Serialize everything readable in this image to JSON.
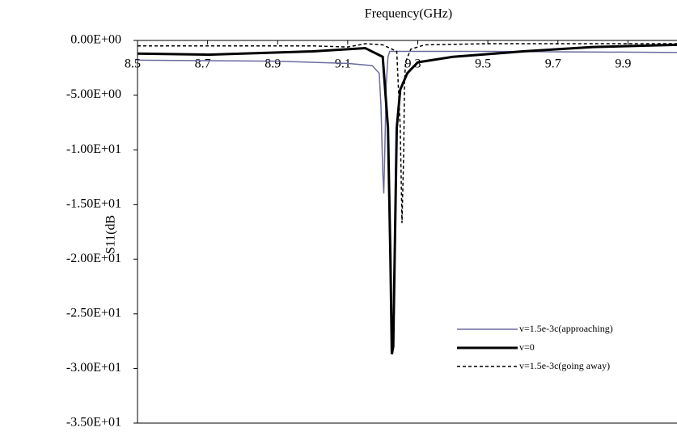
{
  "chart_data": {
    "type": "line",
    "x_label": "Frequency(GHz)",
    "y_label": "S11(dB",
    "xlim": [
      8.5,
      10.04
    ],
    "xticks": [
      8.5,
      8.7,
      8.9,
      9.1,
      9.3,
      9.5,
      9.7,
      9.9
    ],
    "ylim": [
      -35,
      0
    ],
    "yticks": [
      {
        "value": 0,
        "label": "0.00E+00"
      },
      {
        "value": -5,
        "label": "-5.00E+00"
      },
      {
        "value": -10,
        "label": "-1.00E+01"
      },
      {
        "value": -15,
        "label": "-1.50E+01"
      },
      {
        "value": -20,
        "label": "-2.00E+01"
      },
      {
        "value": -25,
        "label": "-2.50E+01"
      },
      {
        "value": -30,
        "label": "-3.00E+01"
      },
      {
        "value": -35,
        "label": "-3.50E+01"
      }
    ],
    "series": [
      {
        "name": "v=1.5e-3c(approaching)",
        "color": "#6b6b9e",
        "width": 1.5,
        "dash": "none",
        "x": [
          8.5,
          8.9,
          9.1,
          9.17,
          9.19,
          9.195,
          9.2,
          9.203,
          9.206,
          9.21,
          9.215,
          9.22,
          9.25,
          9.3,
          9.5,
          10.04
        ],
        "values": [
          -1.8,
          -1.9,
          -2.1,
          -2.3,
          -3,
          -6,
          -12,
          -14,
          -10,
          -4,
          -1.5,
          -1,
          -1,
          -1,
          -1,
          -1.1
        ]
      },
      {
        "name": "v=0",
        "color": "#000000",
        "width": 3,
        "dash": "none",
        "x": [
          8.5,
          8.7,
          9.0,
          9.15,
          9.2,
          9.215,
          9.222,
          9.226,
          9.23,
          9.234,
          9.24,
          9.25,
          9.27,
          9.3,
          9.4,
          9.6,
          9.8,
          10.04
        ],
        "values": [
          -1.2,
          -1.3,
          -1.0,
          -0.7,
          -1.5,
          -8,
          -20,
          -28.7,
          -28,
          -20,
          -8,
          -4.5,
          -3,
          -2,
          -1.5,
          -1,
          -0.6,
          -0.4
        ]
      },
      {
        "name": "v=1.5e-3c(going away)",
        "color": "#000000",
        "width": 1.5,
        "dash": "4 3",
        "x": [
          8.5,
          9.0,
          9.1,
          9.15,
          9.2,
          9.24,
          9.25,
          9.255,
          9.26,
          9.262,
          9.265,
          9.28,
          9.32,
          9.5,
          10.04
        ],
        "values": [
          -0.5,
          -0.5,
          -0.6,
          -0.3,
          -0.4,
          -1,
          -8,
          -16.7,
          -10,
          -4,
          -2,
          -0.8,
          -0.4,
          -0.3,
          -0.3
        ]
      }
    ]
  }
}
